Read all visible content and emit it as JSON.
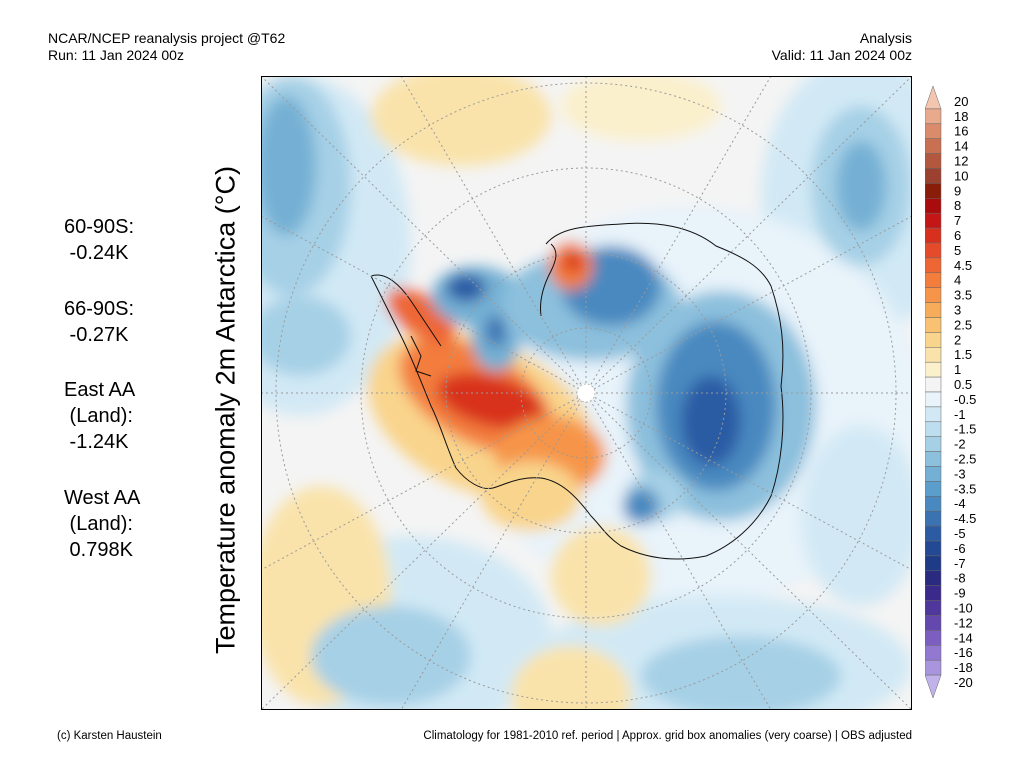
{
  "header": {
    "left_line1": "NCAR/NCEP reanalysis project @T62",
    "left_line2": "Run: 11 Jan 2024 00z",
    "right_line1": "Analysis",
    "right_line2": "Valid: 11 Jan 2024 00z"
  },
  "stats": [
    {
      "lines": [
        "60-90S:",
        " -0.24K"
      ]
    },
    {
      "lines": [
        "66-90S:",
        " -0.27K"
      ]
    },
    {
      "lines": [
        "East AA",
        " (Land):",
        " -1.24K"
      ]
    },
    {
      "lines": [
        "West AA",
        " (Land):",
        " 0.798K"
      ]
    }
  ],
  "map": {
    "ylabel": "Temperature anomaly 2m Antarctica (°C)",
    "projection": "south-polar-stereographic",
    "grid": true
  },
  "colorbar": {
    "labels": [
      "20",
      "18",
      "16",
      "14",
      "12",
      "10",
      "9",
      "8",
      "7",
      "6",
      "5",
      "4.5",
      "4",
      "3.5",
      "3",
      "2.5",
      "2",
      "1.5",
      "1",
      "0.5",
      "-0.5",
      "-1",
      "-1.5",
      "-2",
      "-2.5",
      "-3",
      "-3.5",
      "-4",
      "-4.5",
      "-5",
      "-6",
      "-7",
      "-8",
      "-9",
      "-10",
      "-12",
      "-14",
      "-16",
      "-18",
      "-20"
    ],
    "colors": [
      "#f4c6b0",
      "#e8a98c",
      "#d98b6c",
      "#c96f52",
      "#b3573f",
      "#9c4030",
      "#8a1c0a",
      "#a80c0c",
      "#c41616",
      "#d8301e",
      "#e54a2a",
      "#ee6634",
      "#f37d3c",
      "#f6954a",
      "#f7ac5c",
      "#f8c272",
      "#f9d48c",
      "#fae3aa",
      "#fbf0cc",
      "#f4f4f4",
      "#e8f3fa",
      "#d2e9f5",
      "#bcdeee",
      "#a6d0e6",
      "#8cc0dd",
      "#74b0d4",
      "#5c9ecb",
      "#4a89c0",
      "#3a72b2",
      "#2c5ba4",
      "#234894",
      "#1f3a86",
      "#2a2a80",
      "#3b2a8c",
      "#50379c",
      "#6548ae",
      "#7b5ec0",
      "#9278d0",
      "#a995de",
      "#c2b2ec"
    ]
  },
  "footer": {
    "left": "(c) Karsten Haustein",
    "right": "Climatology for 1981-2010 ref. period | Approx. grid box anomalies (very coarse) | OBS adjusted"
  }
}
